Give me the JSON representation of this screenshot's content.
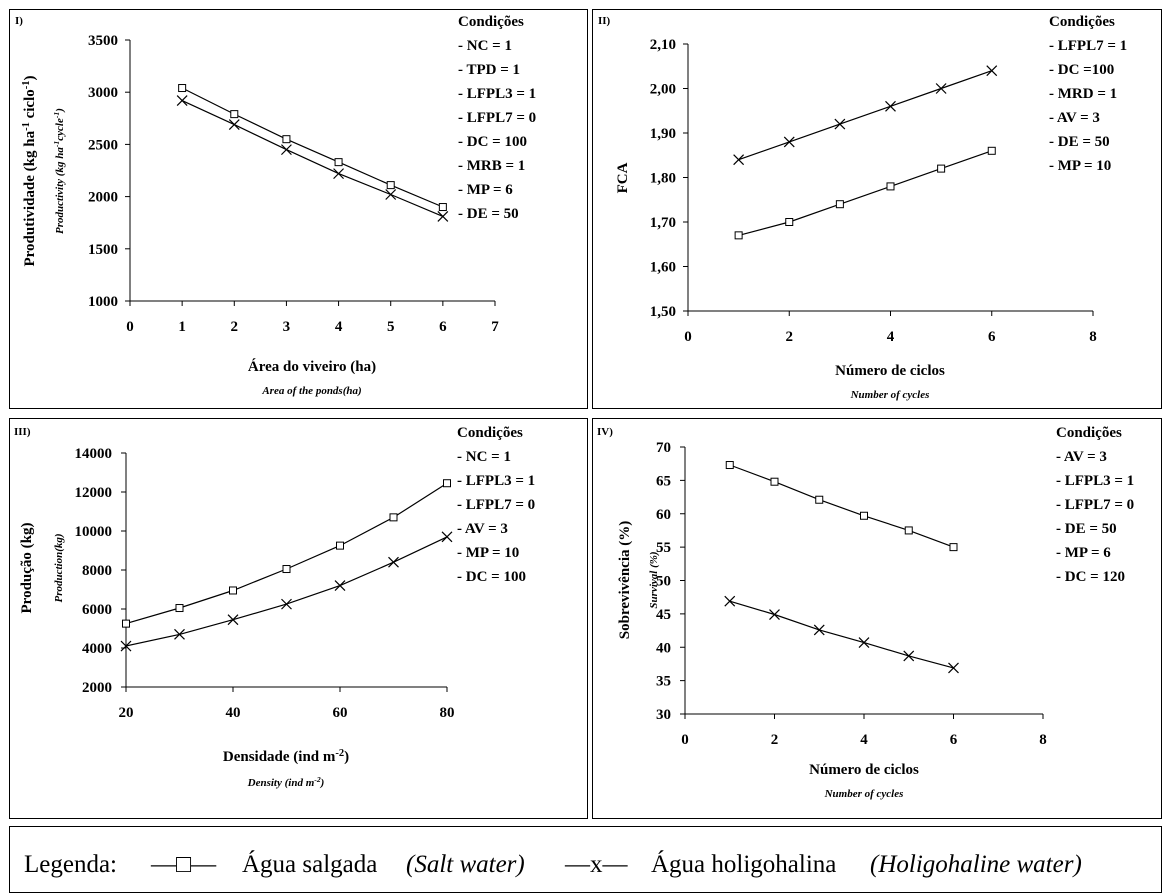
{
  "chart_data": [
    {
      "type": "line",
      "panel_label": "I)",
      "xlabel": "Área do viveiro (ha)",
      "xlabel_sub": "Area of the ponds(ha)",
      "ylabel": "Produtividade (kg ha-1 ciclo-1)",
      "ylabel_sub": "Productivity (kg ha-1cycle-1)",
      "xlim": [
        0,
        7
      ],
      "ylim": [
        1000,
        3500
      ],
      "xticks": [
        "0",
        "1",
        "2",
        "3",
        "4",
        "5",
        "6",
        "7"
      ],
      "yticks": [
        "1000",
        "1500",
        "2000",
        "2500",
        "3000",
        "3500"
      ],
      "conditions_title": "Condições",
      "conditions": [
        "- NC = 1",
        "- TPD = 1",
        "- LFPL3 = 1",
        "- LFPL7 = 0",
        "- DC = 100",
        "- MRB = 1",
        "- MP = 6",
        "- DE = 50"
      ],
      "series": [
        {
          "marker": "square",
          "x": [
            1,
            2,
            3,
            4,
            5,
            6
          ],
          "values": [
            3040,
            2790,
            2550,
            2330,
            2110,
            1900
          ]
        },
        {
          "marker": "x",
          "x": [
            1,
            2,
            3,
            4,
            5,
            6
          ],
          "values": [
            2920,
            2690,
            2450,
            2220,
            2020,
            1810
          ]
        }
      ]
    },
    {
      "type": "line",
      "panel_label": "II)",
      "xlabel": "Número de ciclos",
      "xlabel_sub": "Number of cycles",
      "ylabel": "FCA",
      "ylabel_sub": "",
      "xlim": [
        0,
        8
      ],
      "ylim": [
        1.5,
        2.1
      ],
      "xticks": [
        "0",
        "2",
        "4",
        "6",
        "8"
      ],
      "yticks": [
        "1,50",
        "1,60",
        "1,70",
        "1,80",
        "1,90",
        "2,00",
        "2,10"
      ],
      "conditions_title": "Condições",
      "conditions": [
        "- LFPL7 = 1",
        "- DC =100",
        "- MRD = 1",
        "- AV = 3",
        "- DE = 50",
        "- MP = 10"
      ],
      "series": [
        {
          "marker": "square",
          "x": [
            1,
            2,
            3,
            4,
            5,
            6
          ],
          "values": [
            1.67,
            1.7,
            1.74,
            1.78,
            1.82,
            1.86
          ]
        },
        {
          "marker": "x",
          "x": [
            1,
            2,
            3,
            4,
            5,
            6
          ],
          "values": [
            1.84,
            1.88,
            1.92,
            1.96,
            2.0,
            2.04
          ]
        }
      ]
    },
    {
      "type": "line",
      "panel_label": "III)",
      "xlabel": "Densidade (ind m-2)",
      "xlabel_sub": "Density (ind m-2)",
      "ylabel": "Produção (kg)",
      "ylabel_sub": "Production(kg)",
      "xlim": [
        20,
        80
      ],
      "ylim": [
        2000,
        14000
      ],
      "xticks": [
        "20",
        "40",
        "60",
        "80"
      ],
      "yticks": [
        "2000",
        "4000",
        "6000",
        "8000",
        "10000",
        "12000",
        "14000"
      ],
      "conditions_title": "Condições",
      "conditions": [
        "- NC = 1",
        "- LFPL3 = 1",
        "- LFPL7 = 0",
        "- AV = 3",
        "- MP = 10",
        "- DC = 100"
      ],
      "series": [
        {
          "marker": "square",
          "x": [
            20,
            30,
            40,
            50,
            60,
            70,
            80
          ],
          "values": [
            5250,
            6050,
            6950,
            8050,
            9250,
            10700,
            12450
          ]
        },
        {
          "marker": "x",
          "x": [
            20,
            30,
            40,
            50,
            60,
            70,
            80
          ],
          "values": [
            4100,
            4700,
            5450,
            6250,
            7200,
            8400,
            9700
          ]
        }
      ]
    },
    {
      "type": "line",
      "panel_label": "IV)",
      "xlabel": "Número de ciclos",
      "xlabel_sub": "Number of cycles",
      "ylabel": "Sobrevivência (%)",
      "ylabel_sub": "Survival (%)",
      "xlim": [
        0,
        8
      ],
      "ylim": [
        30,
        70
      ],
      "xticks": [
        "0",
        "2",
        "4",
        "6",
        "8"
      ],
      "yticks": [
        "30",
        "35",
        "40",
        "45",
        "50",
        "55",
        "60",
        "65",
        "70"
      ],
      "conditions_title": "Condições",
      "conditions": [
        "- AV = 3",
        "- LFPL3 = 1",
        "- LFPL7 = 0",
        "- DE = 50",
        "- MP = 6",
        "- DC = 120"
      ],
      "series": [
        {
          "marker": "square",
          "x": [
            1,
            2,
            3,
            4,
            5,
            6
          ],
          "values": [
            67.3,
            64.8,
            62.1,
            59.7,
            57.5,
            55.0
          ]
        },
        {
          "marker": "x",
          "x": [
            1,
            2,
            3,
            4,
            5,
            6
          ],
          "values": [
            46.9,
            44.9,
            42.6,
            40.7,
            38.7,
            36.9
          ]
        }
      ]
    }
  ],
  "legend": {
    "prefix": "Legenda:",
    "salt_line": "—□—",
    "salt_pt": "Água salgada",
    "salt_en": "(Salt water)",
    "holi_line": "—x—",
    "holi_pt": "Água holigohalina",
    "holi_en": "(Holigohaline water)"
  }
}
